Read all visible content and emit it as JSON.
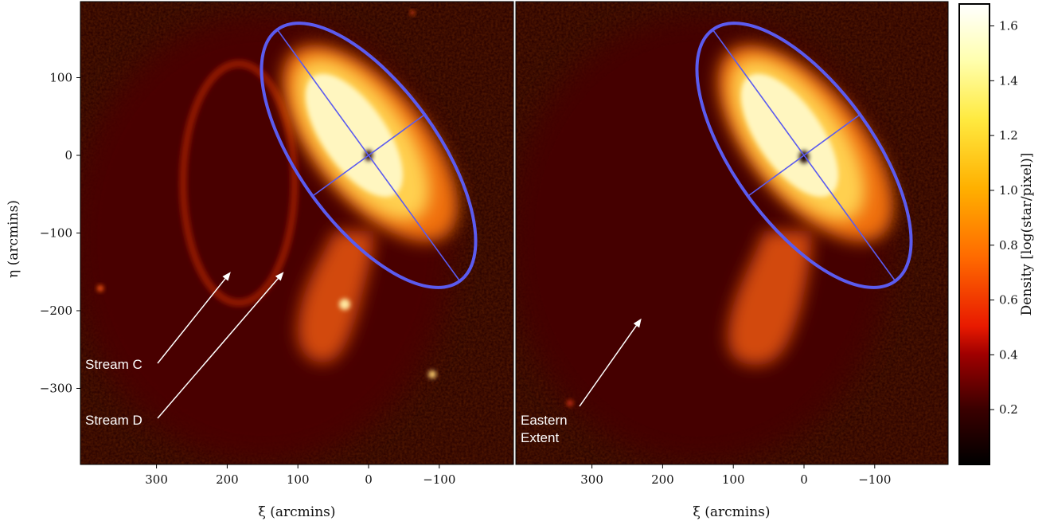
{
  "chart_data": [
    {
      "type": "heatmap",
      "panel": "left",
      "xlabel": "ξ (arcmins)",
      "ylabel": "η (arcmins)",
      "xlim": [
        400,
        -200
      ],
      "ylim": [
        -400,
        200
      ],
      "xticks": [
        300,
        200,
        100,
        0,
        -100
      ],
      "yticks": [
        100,
        0,
        -100,
        -200,
        -300
      ],
      "ellipse": {
        "center": [
          0,
          0
        ],
        "semi_major": 170,
        "semi_minor": 85,
        "major_axis_direction": "NE-SW"
      },
      "annotations": [
        {
          "text": "Stream C",
          "points_to": [
            195,
            -150
          ]
        },
        {
          "text": "Stream D",
          "points_to": [
            120,
            -150
          ]
        }
      ]
    },
    {
      "type": "heatmap",
      "panel": "right",
      "xlabel": "ξ (arcmins)",
      "xlim": [
        400,
        -200
      ],
      "ylim": [
        -400,
        200
      ],
      "xticks": [
        300,
        200,
        100,
        0,
        -100
      ],
      "ellipse": {
        "center": [
          0,
          0
        ],
        "semi_major": 170,
        "semi_minor": 85,
        "major_axis_direction": "NE-SW"
      },
      "annotations": [
        {
          "text": "Eastern Extent",
          "lines": [
            "Eastern",
            "Extent"
          ],
          "points_to": [
            230,
            -210
          ]
        }
      ]
    }
  ],
  "colorbar": {
    "label": "Density [log(star/pixel)]",
    "ticks": [
      1.6,
      1.4,
      1.2,
      1.0,
      0.8,
      0.6,
      0.4,
      0.2
    ],
    "tick_labels": [
      "1.6",
      "1.4",
      "1.2",
      "1.0",
      "0.8",
      "0.6",
      "0.4",
      "0.2"
    ],
    "range": [
      0,
      1.68
    ],
    "colormap": "hot"
  },
  "colors": {
    "ellipse": "#5b5bef",
    "arrow": "#ffffff",
    "annotation_text": "#ffffff"
  }
}
